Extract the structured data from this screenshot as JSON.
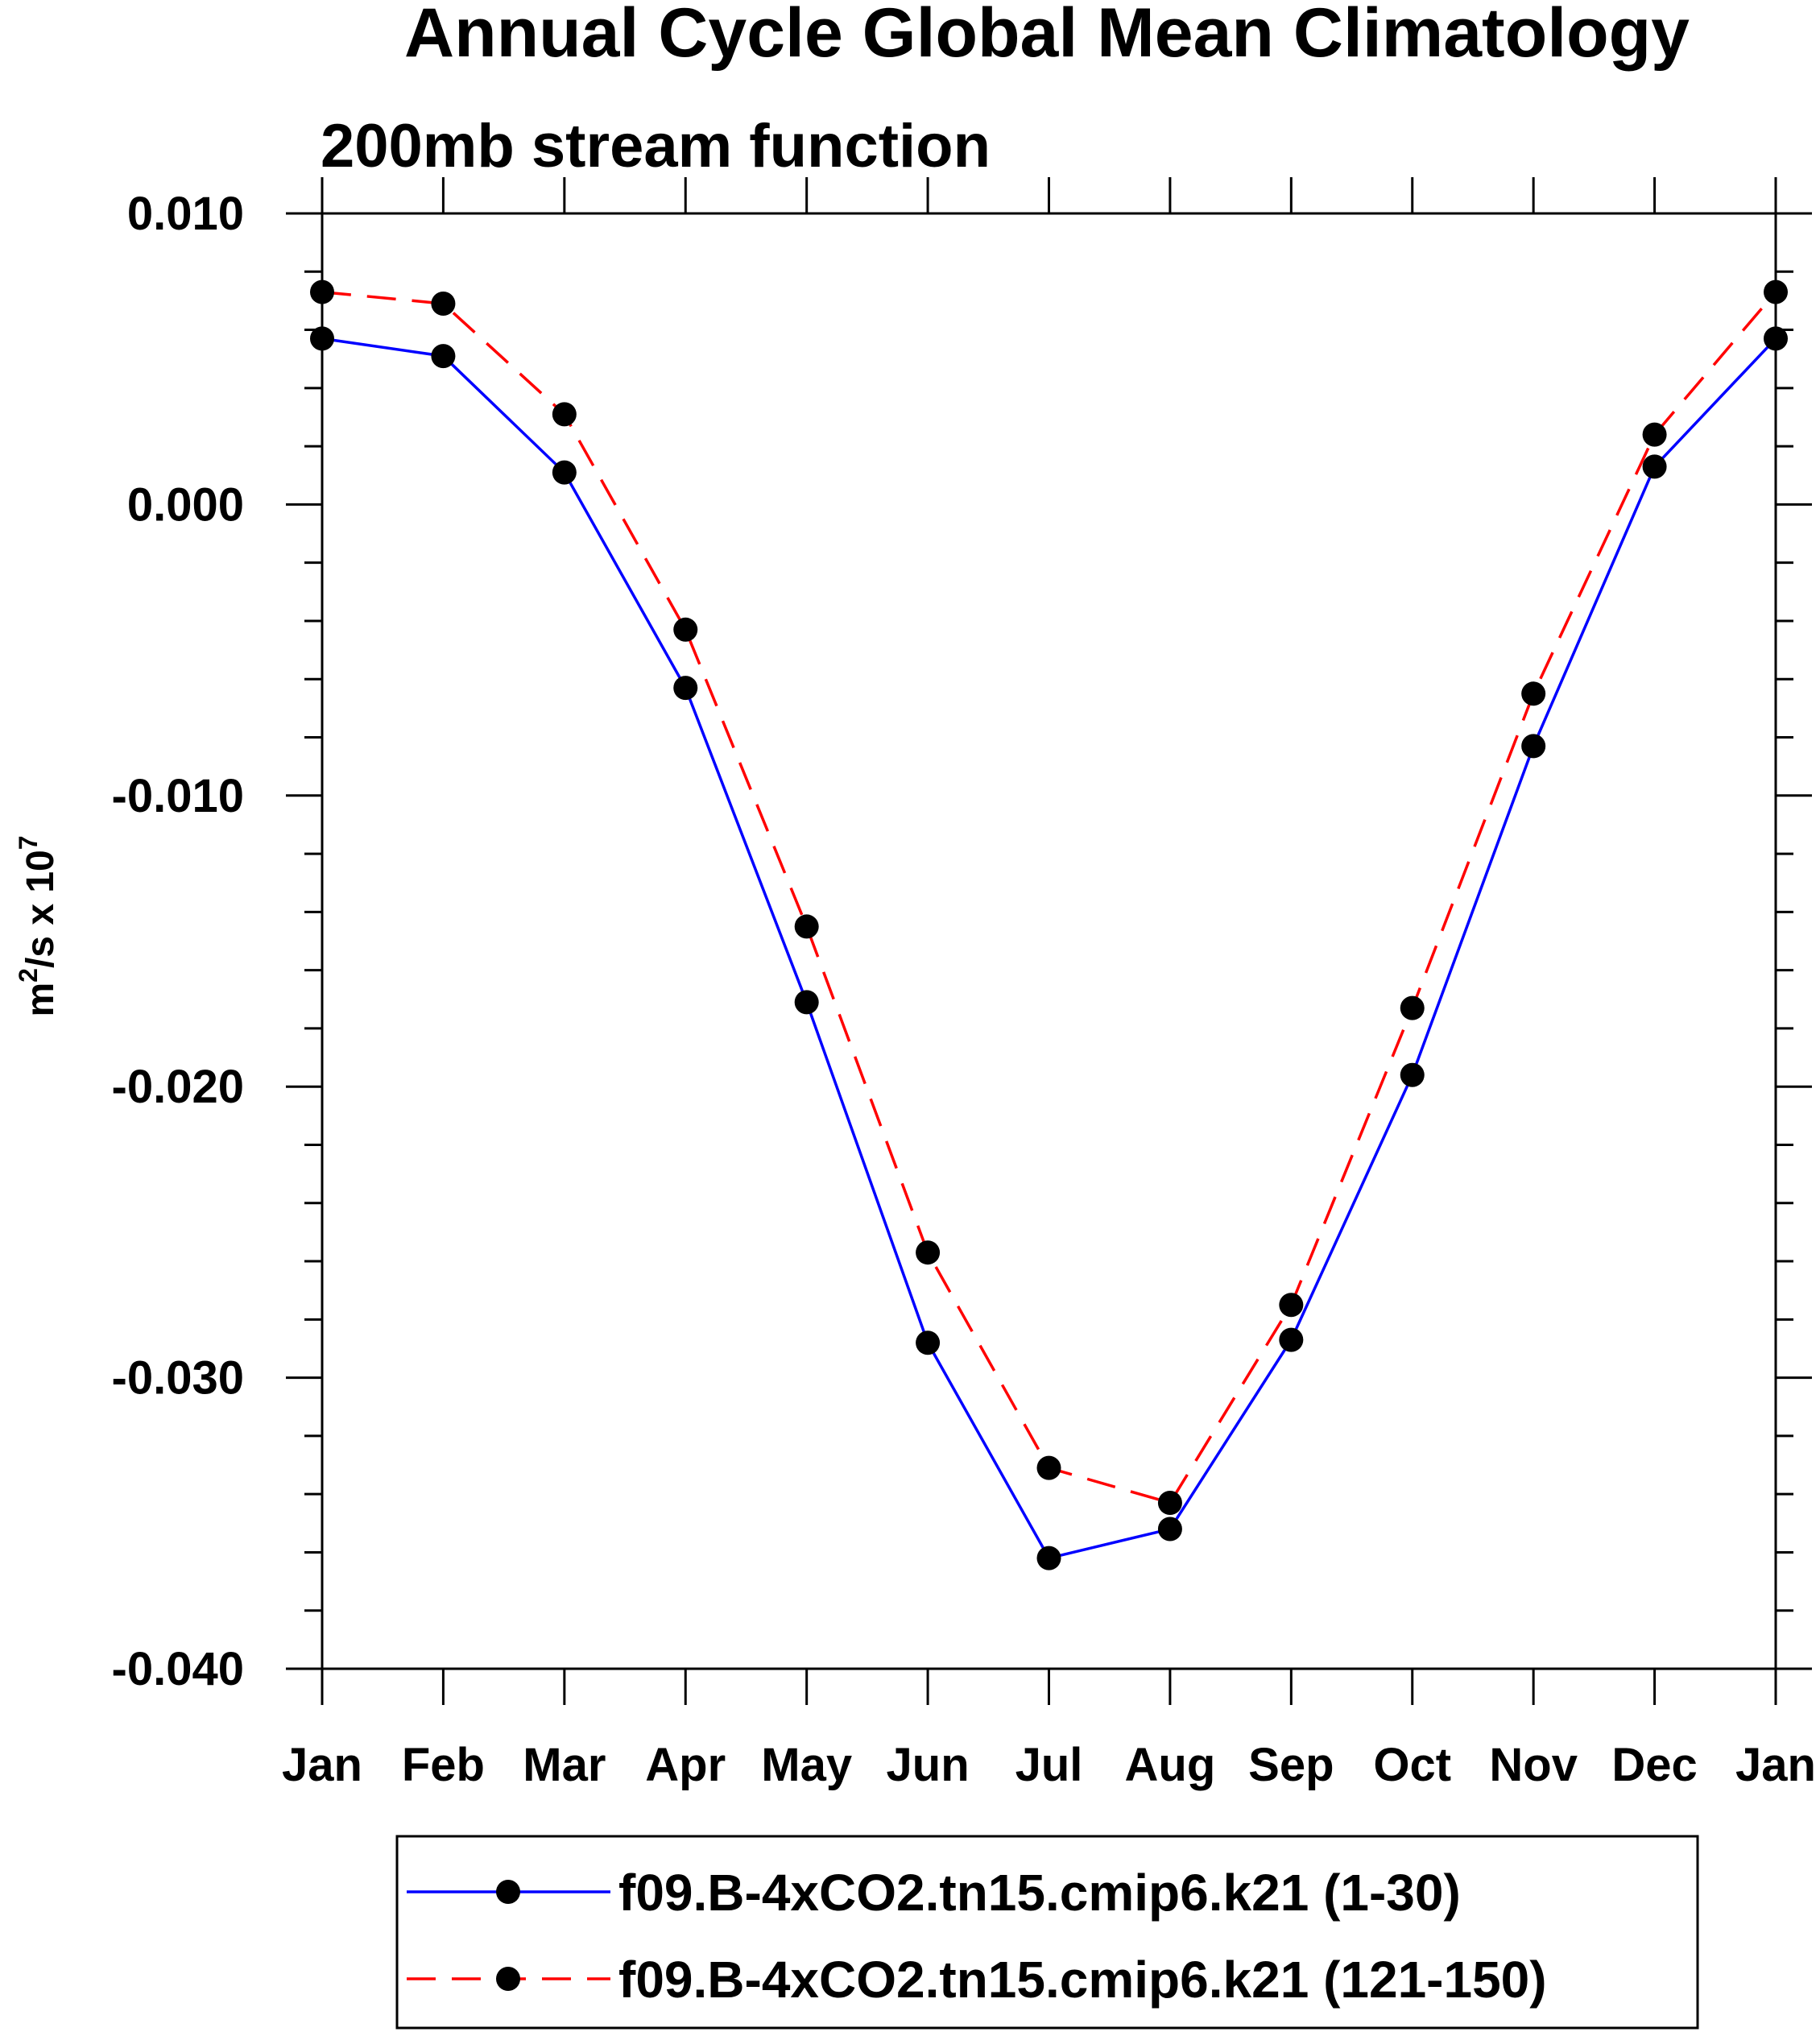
{
  "chart_data": {
    "type": "line",
    "title": "Annual Cycle Global Mean Climatology",
    "subtitle": "200mb stream function",
    "ylabel_main": "m",
    "ylabel_sup1": "2",
    "ylabel_mid": "/s x 10",
    "ylabel_sup2": "7",
    "xlabel": "",
    "categories": [
      "Jan",
      "Feb",
      "Mar",
      "Apr",
      "May",
      "Jun",
      "Jul",
      "Aug",
      "Sep",
      "Oct",
      "Nov",
      "Dec",
      "Jan"
    ],
    "ylim": [
      -0.04,
      0.01
    ],
    "yticks": [
      0.01,
      0.0,
      -0.01,
      -0.02,
      -0.03,
      -0.04
    ],
    "ytick_labels": [
      "0.010",
      "0.000",
      "-0.010",
      "-0.020",
      "-0.030",
      "-0.040"
    ],
    "yminor_step": 0.002,
    "grid": false,
    "legend_position": "bottom",
    "series": [
      {
        "name": "f09.B-4xCO2.tn15.cmip6.k21 (1-30)",
        "color": "#0000ff",
        "dash": "solid",
        "values": [
          0.0057,
          0.0051,
          0.0011,
          -0.0063,
          -0.0171,
          -0.0288,
          -0.0362,
          -0.0352,
          -0.0287,
          -0.0196,
          -0.0083,
          0.0013,
          0.0057
        ]
      },
      {
        "name": "f09.B-4xCO2.tn15.cmip6.k21 (121-150)",
        "color": "#ff0000",
        "dash": "dashed",
        "values": [
          0.0073,
          0.0069,
          0.0031,
          -0.0043,
          -0.0145,
          -0.0257,
          -0.0331,
          -0.0343,
          -0.0275,
          -0.0173,
          -0.0065,
          0.0024,
          0.0073
        ]
      }
    ]
  }
}
